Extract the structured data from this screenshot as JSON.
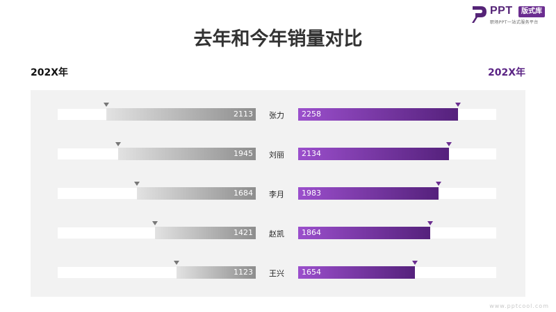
{
  "logo": {
    "brand": "PPT",
    "badge": "版式库",
    "tagline": "职场PPT一站式服务平台"
  },
  "title": "去年和今年销量对比",
  "year_left": "202X年",
  "year_right": "202X年",
  "watermark": "www.pptcool.com",
  "colors": {
    "left_bar_light": "#e2e2e2",
    "left_bar_dark": "#8d8d8d",
    "right_bar_light": "#9b4fcc",
    "right_bar_dark": "#55217c",
    "right_year": "#5a2384"
  },
  "chart_data": {
    "type": "bar",
    "orientation": "horizontal-diverging",
    "categories": [
      "张力",
      "刘丽",
      "李月",
      "赵凯",
      "王兴"
    ],
    "series": [
      {
        "values": [
          2113,
          1945,
          1684,
          1421,
          1123
        ]
      },
      {
        "values": [
          2258,
          2134,
          1983,
          1864,
          1654
        ]
      }
    ],
    "xlim": [
      0,
      2800
    ]
  }
}
